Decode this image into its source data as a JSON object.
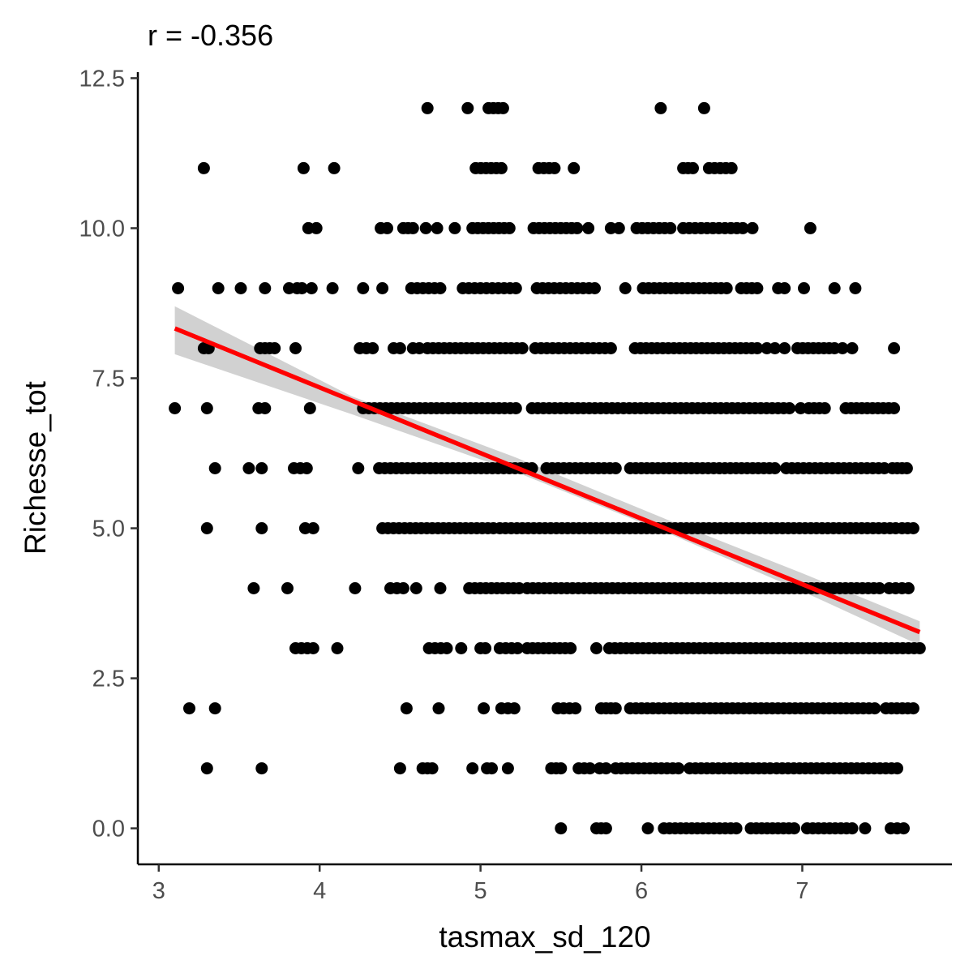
{
  "chart_data": {
    "type": "scatter",
    "title": "r = -0.356",
    "xlabel": "tasmax_sd_120",
    "ylabel": "Richesse_tot",
    "xlim": [
      2.87,
      7.93
    ],
    "ylim": [
      -0.6,
      12.6
    ],
    "x_ticks": [
      3,
      4,
      5,
      6,
      7
    ],
    "x_tick_labels": [
      "3",
      "4",
      "5",
      "6",
      "7"
    ],
    "y_ticks": [
      0,
      2.5,
      5,
      7.5,
      10,
      12.5
    ],
    "y_tick_labels": [
      "0.0",
      "2.5",
      "5.0",
      "7.5",
      "10.0",
      "12.5"
    ],
    "grid": false,
    "legend": "none",
    "colors": {
      "points": "#000000",
      "trend": "#ff0000",
      "band": "#bebebe"
    },
    "point_rows": [
      {
        "y": 12,
        "segments": [
          [
            4.67,
            4.67
          ],
          [
            4.92,
            4.92
          ],
          [
            5.05,
            5.14
          ],
          [
            6.12,
            6.12
          ],
          [
            6.39,
            6.39
          ]
        ]
      },
      {
        "y": 11,
        "segments": [
          [
            3.28,
            3.28
          ],
          [
            3.9,
            3.9
          ],
          [
            4.09,
            4.09
          ],
          [
            4.97,
            5.13
          ],
          [
            5.36,
            5.46
          ],
          [
            5.58,
            5.58
          ],
          [
            6.26,
            6.32
          ],
          [
            6.42,
            6.56
          ]
        ]
      },
      {
        "y": 10,
        "segments": [
          [
            3.93,
            3.98
          ],
          [
            4.38,
            4.42
          ],
          [
            4.52,
            4.58
          ],
          [
            4.66,
            4.66
          ],
          [
            4.73,
            4.73
          ],
          [
            4.84,
            4.84
          ],
          [
            4.95,
            5.18
          ],
          [
            5.33,
            5.6
          ],
          [
            5.67,
            5.67
          ],
          [
            5.81,
            5.86
          ],
          [
            5.97,
            6.18
          ],
          [
            6.26,
            6.63
          ],
          [
            6.69,
            6.69
          ],
          [
            7.05,
            7.05
          ]
        ]
      },
      {
        "y": 9,
        "segments": [
          [
            3.12,
            3.12
          ],
          [
            3.37,
            3.37
          ],
          [
            3.51,
            3.51
          ],
          [
            3.66,
            3.66
          ],
          [
            3.81,
            3.81
          ],
          [
            3.86,
            3.89
          ],
          [
            3.95,
            3.95
          ],
          [
            4.08,
            4.08
          ],
          [
            4.27,
            4.27
          ],
          [
            4.39,
            4.39
          ],
          [
            4.57,
            4.75
          ],
          [
            4.89,
            5.22
          ],
          [
            5.35,
            5.71
          ],
          [
            5.9,
            5.9
          ],
          [
            6.01,
            6.53
          ],
          [
            6.62,
            6.72
          ],
          [
            6.85,
            6.89
          ],
          [
            7.01,
            7.01
          ],
          [
            7.2,
            7.2
          ],
          [
            7.33,
            7.33
          ]
        ]
      },
      {
        "y": 8,
        "segments": [
          [
            3.28,
            3.31
          ],
          [
            3.63,
            3.72
          ],
          [
            3.85,
            3.85
          ],
          [
            4.25,
            4.33
          ],
          [
            4.46,
            4.5
          ],
          [
            4.58,
            4.62
          ],
          [
            4.67,
            5.26
          ],
          [
            5.34,
            5.81
          ],
          [
            5.96,
            6.72
          ],
          [
            6.78,
            6.83
          ],
          [
            6.89,
            6.89
          ],
          [
            6.97,
            7.2
          ],
          [
            7.25,
            7.25
          ],
          [
            7.31,
            7.31
          ],
          [
            7.57,
            7.57
          ]
        ]
      },
      {
        "y": 7,
        "segments": [
          [
            3.1,
            3.1
          ],
          [
            3.3,
            3.3
          ],
          [
            3.62,
            3.66
          ],
          [
            3.94,
            3.94
          ],
          [
            4.27,
            5.22
          ],
          [
            5.32,
            6.92
          ],
          [
            6.99,
            6.99
          ],
          [
            7.04,
            7.14
          ],
          [
            7.27,
            7.57
          ]
        ]
      },
      {
        "y": 6,
        "segments": [
          [
            3.35,
            3.35
          ],
          [
            3.56,
            3.56
          ],
          [
            3.64,
            3.64
          ],
          [
            3.84,
            3.92
          ],
          [
            4.24,
            4.24
          ],
          [
            4.37,
            5.32
          ],
          [
            5.41,
            5.84
          ],
          [
            5.93,
            6.83
          ],
          [
            6.9,
            7.51
          ],
          [
            7.56,
            7.65
          ]
        ]
      },
      {
        "y": 5,
        "segments": [
          [
            3.3,
            3.3
          ],
          [
            3.64,
            3.64
          ],
          [
            3.91,
            3.96
          ],
          [
            4.39,
            5.08
          ],
          [
            5.12,
            7.58
          ],
          [
            7.62,
            7.69
          ]
        ]
      },
      {
        "y": 4,
        "segments": [
          [
            3.59,
            3.59
          ],
          [
            3.8,
            3.8
          ],
          [
            4.22,
            4.22
          ],
          [
            4.44,
            4.52
          ],
          [
            4.6,
            4.6
          ],
          [
            4.75,
            4.75
          ],
          [
            4.93,
            5.24
          ],
          [
            5.29,
            7.48
          ],
          [
            7.54,
            7.66
          ]
        ]
      },
      {
        "y": 3,
        "segments": [
          [
            3.85,
            3.96
          ],
          [
            4.11,
            4.11
          ],
          [
            4.68,
            4.79
          ],
          [
            4.88,
            4.88
          ],
          [
            5.0,
            5.03
          ],
          [
            5.12,
            5.23
          ],
          [
            5.29,
            5.56
          ],
          [
            5.72,
            5.72
          ],
          [
            5.8,
            7.73
          ]
        ]
      },
      {
        "y": 2,
        "segments": [
          [
            3.19,
            3.19
          ],
          [
            3.35,
            3.35
          ],
          [
            4.54,
            4.54
          ],
          [
            4.74,
            4.74
          ],
          [
            5.02,
            5.02
          ],
          [
            5.13,
            5.21
          ],
          [
            5.48,
            5.59
          ],
          [
            5.75,
            5.84
          ],
          [
            5.93,
            7.45
          ],
          [
            7.52,
            7.69
          ]
        ]
      },
      {
        "y": 1,
        "segments": [
          [
            3.3,
            3.3
          ],
          [
            3.64,
            3.64
          ],
          [
            4.5,
            4.5
          ],
          [
            4.64,
            4.7
          ],
          [
            4.95,
            4.95
          ],
          [
            5.04,
            5.07
          ],
          [
            5.17,
            5.17
          ],
          [
            5.44,
            5.5
          ],
          [
            5.61,
            5.68
          ],
          [
            5.74,
            5.78
          ],
          [
            5.84,
            6.23
          ],
          [
            6.3,
            6.8
          ],
          [
            6.84,
            7.59
          ]
        ]
      },
      {
        "y": 0,
        "segments": [
          [
            5.5,
            5.5
          ],
          [
            5.72,
            5.78
          ],
          [
            6.04,
            6.04
          ],
          [
            6.14,
            6.59
          ],
          [
            6.68,
            6.95
          ],
          [
            7.03,
            7.31
          ],
          [
            7.39,
            7.39
          ],
          [
            7.55,
            7.63
          ]
        ]
      }
    ],
    "trend_line": {
      "x": [
        3.1,
        7.73
      ],
      "y": [
        8.33,
        3.27
      ]
    },
    "confidence_band": {
      "x": [
        3.1,
        4.2,
        5.2,
        6.2,
        7.0,
        7.73
      ],
      "upper": [
        8.7,
        7.2,
        6.2,
        5.1,
        4.25,
        3.45
      ],
      "lower": [
        7.9,
        6.9,
        5.96,
        4.88,
        3.95,
        3.05
      ]
    }
  }
}
